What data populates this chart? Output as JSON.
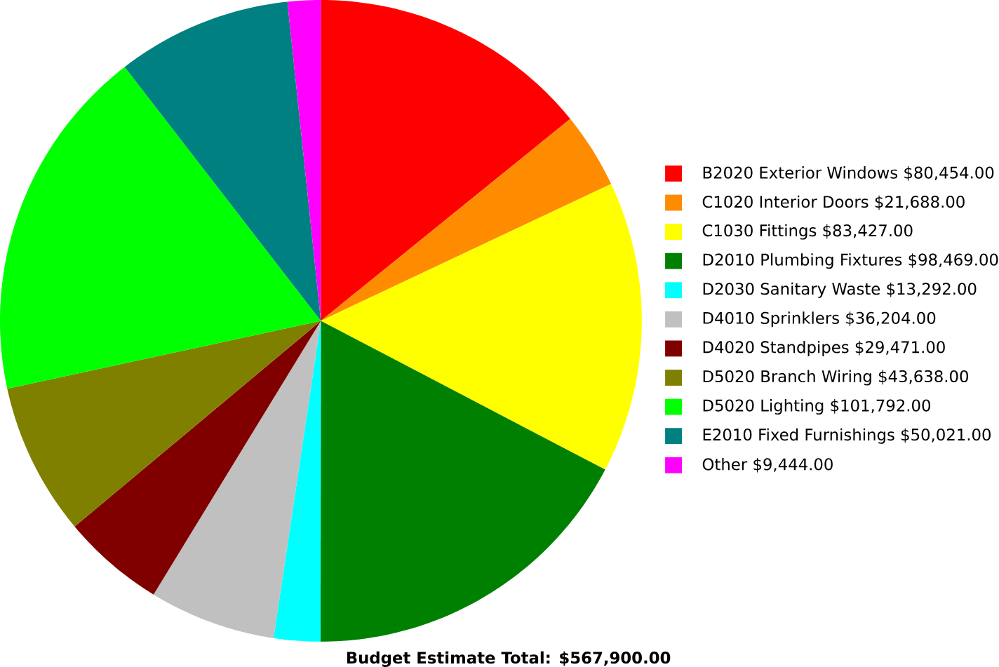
{
  "chart_data": {
    "type": "pie",
    "categories": [
      "B2020 Exterior Windows",
      "C1020 Interior Doors",
      "C1030 Fittings",
      "D2010 Plumbing Fixtures",
      "D2030 Sanitary Waste",
      "D4010 Sprinklers",
      "D4020 Standpipes",
      "D5020 Branch Wiring",
      "D5020 Lighting",
      "E2010 Fixed Furnishings",
      "Other"
    ],
    "values": [
      80454,
      21688,
      83427,
      98469,
      13292,
      36204,
      29471,
      43638,
      101792,
      50021,
      9444
    ],
    "value_labels": [
      "$80,454.00",
      "$21,688.00",
      "$83,427.00",
      "$98,469.00",
      "$13,292.00",
      "$36,204.00",
      "$29,471.00",
      "$43,638.00",
      "$101,792.00",
      "$50,021.00",
      "$9,444.00"
    ],
    "colors": [
      "#ff0000",
      "#ff8c00",
      "#ffff00",
      "#008000",
      "#00ffff",
      "#c0c0c0",
      "#800000",
      "#808000",
      "#00ff00",
      "#008080",
      "#ff00ff"
    ],
    "legend": "right",
    "annotations": [
      "**Budget Estimate Total: $567,900.00**"
    ]
  }
}
